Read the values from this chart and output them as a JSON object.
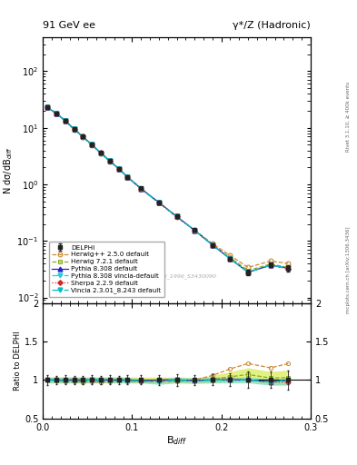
{
  "title_left": "91 GeV ee",
  "title_right": "γ*/Z (Hadronic)",
  "ylabel_main": "N dσ/dB$_{diff}$",
  "ylabel_ratio": "Ratio to DELPHI",
  "xlabel": "B$_{diff}$",
  "right_label_top": "Rivet 3.1.10, ≥ 400k events",
  "right_label_bottom": "mcplots.cern.ch [arXiv:1306.3436]",
  "watermark": "DELPHI_1996_S3430090",
  "xlim": [
    0.0,
    0.3
  ],
  "ylim_main": [
    0.008,
    400
  ],
  "ylim_ratio": [
    0.5,
    2.0
  ],
  "x_data": [
    0.005,
    0.015,
    0.025,
    0.035,
    0.045,
    0.055,
    0.065,
    0.075,
    0.085,
    0.095,
    0.11,
    0.13,
    0.15,
    0.17,
    0.19,
    0.21,
    0.23,
    0.255,
    0.275
  ],
  "delphi_y": [
    23.0,
    18.0,
    13.5,
    9.5,
    7.0,
    5.0,
    3.6,
    2.6,
    1.9,
    1.35,
    0.85,
    0.48,
    0.27,
    0.155,
    0.085,
    0.048,
    0.028,
    0.038,
    0.033
  ],
  "delphi_yerr": [
    1.5,
    1.0,
    0.8,
    0.5,
    0.4,
    0.3,
    0.2,
    0.15,
    0.1,
    0.08,
    0.05,
    0.03,
    0.02,
    0.01,
    0.006,
    0.004,
    0.003,
    0.004,
    0.004
  ],
  "herwig250_y": [
    23.2,
    17.8,
    13.2,
    9.3,
    6.8,
    4.9,
    3.5,
    2.55,
    1.88,
    1.33,
    0.83,
    0.47,
    0.265,
    0.155,
    0.09,
    0.055,
    0.034,
    0.044,
    0.04
  ],
  "herwig721_y": [
    23.1,
    17.9,
    13.4,
    9.4,
    6.9,
    5.0,
    3.58,
    2.58,
    1.9,
    1.34,
    0.84,
    0.475,
    0.268,
    0.153,
    0.086,
    0.05,
    0.03,
    0.039,
    0.034
  ],
  "pythia308_y": [
    23.0,
    18.0,
    13.5,
    9.5,
    7.0,
    5.0,
    3.6,
    2.6,
    1.9,
    1.35,
    0.84,
    0.48,
    0.27,
    0.154,
    0.085,
    0.048,
    0.028,
    0.037,
    0.033
  ],
  "pythia308v_y": [
    23.0,
    17.9,
    13.4,
    9.4,
    6.95,
    5.0,
    3.58,
    2.58,
    1.89,
    1.34,
    0.84,
    0.47,
    0.27,
    0.154,
    0.085,
    0.048,
    0.028,
    0.037,
    0.033
  ],
  "sherpa229_y": [
    23.1,
    18.0,
    13.5,
    9.5,
    7.0,
    5.0,
    3.6,
    2.6,
    1.9,
    1.35,
    0.84,
    0.48,
    0.27,
    0.154,
    0.085,
    0.049,
    0.028,
    0.037,
    0.032
  ],
  "vincia_y": [
    23.0,
    17.9,
    13.4,
    9.4,
    6.95,
    5.0,
    3.58,
    2.58,
    1.89,
    1.34,
    0.84,
    0.47,
    0.27,
    0.154,
    0.085,
    0.048,
    0.028,
    0.037,
    0.033
  ],
  "herwig250_color": "#cc8833",
  "herwig721_color": "#88aa22",
  "pythia308_color": "#2222cc",
  "pythia308v_color": "#22ccdd",
  "sherpa229_color": "#dd2222",
  "vincia_color": "#00bbcc",
  "delphi_color": "#222222",
  "herwig250_ratio": [
    1.009,
    0.989,
    0.978,
    0.979,
    0.971,
    0.98,
    0.972,
    0.981,
    0.989,
    0.985,
    0.976,
    0.979,
    0.981,
    1.0,
    1.059,
    1.145,
    1.214,
    1.158,
    1.212
  ],
  "herwig721_ratio": [
    1.004,
    0.994,
    0.993,
    0.989,
    0.986,
    1.0,
    0.994,
    0.992,
    1.0,
    0.993,
    0.988,
    0.99,
    0.993,
    0.987,
    1.012,
    1.042,
    1.071,
    1.026,
    1.03
  ],
  "pythia308_ratio": [
    1.0,
    1.0,
    1.0,
    1.0,
    1.0,
    1.0,
    1.0,
    1.0,
    1.0,
    1.0,
    0.988,
    1.0,
    1.0,
    0.994,
    1.0,
    1.0,
    1.0,
    0.974,
    1.0
  ],
  "pythia308v_ratio": [
    1.0,
    0.994,
    0.993,
    0.989,
    0.993,
    1.0,
    0.994,
    0.992,
    0.995,
    0.993,
    0.988,
    0.979,
    1.0,
    0.994,
    1.0,
    1.0,
    1.0,
    0.974,
    1.0
  ],
  "sherpa229_ratio": [
    1.004,
    1.0,
    1.0,
    1.0,
    1.0,
    1.0,
    1.0,
    1.0,
    1.0,
    1.0,
    0.988,
    1.0,
    1.0,
    0.994,
    1.0,
    1.021,
    1.0,
    0.974,
    0.97
  ],
  "vincia_ratio": [
    1.0,
    0.994,
    0.993,
    0.989,
    0.993,
    1.0,
    0.994,
    0.992,
    0.995,
    0.993,
    0.988,
    0.979,
    1.0,
    0.994,
    1.0,
    1.0,
    1.0,
    0.974,
    1.0
  ],
  "herwig721_band_lo": [
    0.97,
    0.97,
    0.97,
    0.97,
    0.97,
    0.97,
    0.97,
    0.97,
    0.97,
    0.97,
    0.97,
    0.97,
    0.97,
    0.96,
    0.97,
    0.99,
    1.0,
    0.95,
    0.95
  ],
  "herwig721_band_hi": [
    1.03,
    1.03,
    1.03,
    1.03,
    1.03,
    1.03,
    1.03,
    1.03,
    1.03,
    1.03,
    1.03,
    1.03,
    1.03,
    1.02,
    1.05,
    1.1,
    1.15,
    1.1,
    1.12
  ],
  "pythia308v_band_lo": [
    0.97,
    0.97,
    0.97,
    0.97,
    0.97,
    0.97,
    0.97,
    0.97,
    0.97,
    0.97,
    0.97,
    0.95,
    0.97,
    0.97,
    0.97,
    0.97,
    0.97,
    0.94,
    0.94
  ],
  "pythia308v_band_hi": [
    1.03,
    1.03,
    1.03,
    1.03,
    1.03,
    1.03,
    1.03,
    1.03,
    1.03,
    1.03,
    1.0,
    1.01,
    1.03,
    1.02,
    1.03,
    1.03,
    1.03,
    1.01,
    1.01
  ]
}
